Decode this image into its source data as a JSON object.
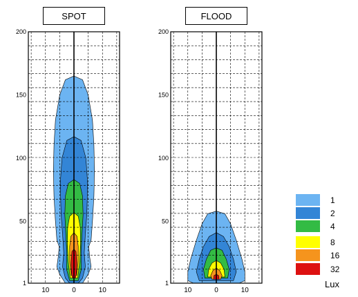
{
  "chart_data": [
    {
      "type": "heatmap",
      "title": "SPOT",
      "ylim": [
        1,
        200
      ],
      "xlim": [
        -16,
        16
      ],
      "yticks": [
        1,
        50,
        100,
        150,
        200
      ],
      "xticks": [
        {
          "value": -10,
          "label": "10"
        },
        {
          "value": 0,
          "label": "0"
        },
        {
          "value": 10,
          "label": "10"
        }
      ],
      "grid": true,
      "contours": [
        {
          "level": 1,
          "color": "#6cb4f2",
          "points": [
            [
              0,
              165
            ],
            [
              3,
              162
            ],
            [
              5,
              150
            ],
            [
              6.5,
              130
            ],
            [
              7,
              110
            ],
            [
              7.2,
              90
            ],
            [
              7,
              70
            ],
            [
              6.5,
              50
            ],
            [
              6,
              35
            ],
            [
              5.2,
              30
            ],
            [
              5.5,
              22
            ],
            [
              6,
              14
            ],
            [
              5,
              8
            ],
            [
              3,
              1
            ],
            [
              -3,
              1
            ],
            [
              -5,
              8
            ],
            [
              -6,
              14
            ],
            [
              -5.5,
              22
            ],
            [
              -5.2,
              30
            ],
            [
              -6,
              35
            ],
            [
              -6.5,
              50
            ],
            [
              -7,
              70
            ],
            [
              -7.2,
              90
            ],
            [
              -7,
              110
            ],
            [
              -6.5,
              130
            ],
            [
              -5,
              150
            ],
            [
              -3,
              162
            ]
          ]
        },
        {
          "level": 2,
          "color": "#3385d6",
          "points": [
            [
              0,
              117
            ],
            [
              2.5,
              114
            ],
            [
              4.2,
              100
            ],
            [
              4.8,
              80
            ],
            [
              4.5,
              55
            ],
            [
              4,
              40
            ],
            [
              3.6,
              25
            ],
            [
              4,
              14
            ],
            [
              3,
              5
            ],
            [
              1.5,
              1
            ],
            [
              -1.5,
              1
            ],
            [
              -3,
              5
            ],
            [
              -4,
              14
            ],
            [
              -3.6,
              25
            ],
            [
              -4,
              40
            ],
            [
              -4.5,
              55
            ],
            [
              -4.8,
              80
            ],
            [
              -4.2,
              100
            ],
            [
              -2.5,
              114
            ]
          ]
        },
        {
          "level": 4,
          "color": "#33bb44",
          "points": [
            [
              0,
              83
            ],
            [
              2,
              80
            ],
            [
              3,
              70
            ],
            [
              3.2,
              55
            ],
            [
              2.8,
              38
            ],
            [
              2.5,
              25
            ],
            [
              2.6,
              12
            ],
            [
              1.5,
              3
            ],
            [
              -1.5,
              3
            ],
            [
              -2.6,
              12
            ],
            [
              -2.5,
              25
            ],
            [
              -2.8,
              38
            ],
            [
              -3.2,
              55
            ],
            [
              -3,
              70
            ],
            [
              -2,
              80
            ]
          ]
        },
        {
          "level": 8,
          "color": "#ffff00",
          "points": [
            [
              0,
              57
            ],
            [
              1.5,
              54
            ],
            [
              2.2,
              45
            ],
            [
              2.3,
              32
            ],
            [
              2,
              18
            ],
            [
              1.3,
              5
            ],
            [
              -1.3,
              5
            ],
            [
              -2,
              18
            ],
            [
              -2.3,
              32
            ],
            [
              -2.2,
              45
            ],
            [
              -1.5,
              54
            ]
          ]
        },
        {
          "level": 16,
          "color": "#f5941d",
          "points": [
            [
              0,
              41
            ],
            [
              1.1,
              38
            ],
            [
              1.5,
              30
            ],
            [
              1.5,
              18
            ],
            [
              1,
              7
            ],
            [
              -1,
              7
            ],
            [
              -1.5,
              18
            ],
            [
              -1.5,
              30
            ],
            [
              -1.1,
              38
            ]
          ]
        },
        {
          "level": 32,
          "color": "#dd1111",
          "points": [
            [
              0,
              28
            ],
            [
              0.7,
              26
            ],
            [
              1,
              18
            ],
            [
              0.9,
              9
            ],
            [
              0.5,
              5
            ],
            [
              -0.5,
              5
            ],
            [
              -0.9,
              9
            ],
            [
              -1,
              18
            ],
            [
              -0.7,
              26
            ]
          ]
        }
      ]
    },
    {
      "type": "heatmap",
      "title": "FLOOD",
      "ylim": [
        1,
        200
      ],
      "xlim": [
        -16,
        16
      ],
      "yticks": [
        1,
        50,
        100,
        150,
        200
      ],
      "xticks": [
        {
          "value": -10,
          "label": "10"
        },
        {
          "value": 0,
          "label": "0"
        },
        {
          "value": 10,
          "label": "10"
        }
      ],
      "grid": true,
      "contours": [
        {
          "level": 1,
          "color": "#6cb4f2",
          "points": [
            [
              0,
              58
            ],
            [
              3,
              56
            ],
            [
              5,
              48
            ],
            [
              7,
              35
            ],
            [
              9,
              20
            ],
            [
              10,
              10
            ],
            [
              10,
              3
            ],
            [
              8,
              1
            ],
            [
              -8,
              1
            ],
            [
              -10,
              3
            ],
            [
              -10,
              10
            ],
            [
              -9,
              20
            ],
            [
              -7,
              35
            ],
            [
              -5,
              48
            ],
            [
              -3,
              56
            ]
          ]
        },
        {
          "level": 2,
          "color": "#3385d6",
          "points": [
            [
              0,
              41
            ],
            [
              2.5,
              38
            ],
            [
              4.5,
              30
            ],
            [
              6,
              20
            ],
            [
              7,
              10
            ],
            [
              6,
              3
            ],
            [
              -6,
              3
            ],
            [
              -7,
              10
            ],
            [
              -6,
              20
            ],
            [
              -4.5,
              30
            ],
            [
              -2.5,
              38
            ]
          ]
        },
        {
          "level": 4,
          "color": "#33bb44",
          "points": [
            [
              0,
              29
            ],
            [
              2,
              27
            ],
            [
              3.5,
              20
            ],
            [
              4.5,
              12
            ],
            [
              4,
              5
            ],
            [
              -4,
              5
            ],
            [
              -4.5,
              12
            ],
            [
              -3.5,
              20
            ],
            [
              -2,
              27
            ]
          ]
        },
        {
          "level": 8,
          "color": "#ffff00",
          "points": [
            [
              0,
              19
            ],
            [
              1.5,
              17
            ],
            [
              2.7,
              12
            ],
            [
              3,
              6
            ],
            [
              -3,
              6
            ],
            [
              -2.7,
              12
            ],
            [
              -1.5,
              17
            ]
          ]
        },
        {
          "level": 16,
          "color": "#f5941d",
          "points": [
            [
              0,
              13
            ],
            [
              1.2,
              11
            ],
            [
              2,
              7
            ],
            [
              1.5,
              4
            ],
            [
              -1.5,
              4
            ],
            [
              -2,
              7
            ],
            [
              -1.2,
              11
            ]
          ]
        },
        {
          "level": 32,
          "color": "#dd1111",
          "points": [
            [
              0,
              8
            ],
            [
              0.8,
              7
            ],
            [
              1,
              4
            ],
            [
              -1,
              4
            ],
            [
              -0.8,
              7
            ]
          ]
        }
      ]
    }
  ],
  "legend": {
    "items": [
      {
        "label": "1",
        "color": "#6cb4f2"
      },
      {
        "label": "2",
        "color": "#3385d6"
      },
      {
        "label": "4",
        "color": "#33bb44"
      },
      {
        "label": "8",
        "color": "#ffff00"
      },
      {
        "label": "16",
        "color": "#f5941d"
      },
      {
        "label": "32",
        "color": "#dd1111"
      }
    ],
    "unit": "Lux"
  }
}
